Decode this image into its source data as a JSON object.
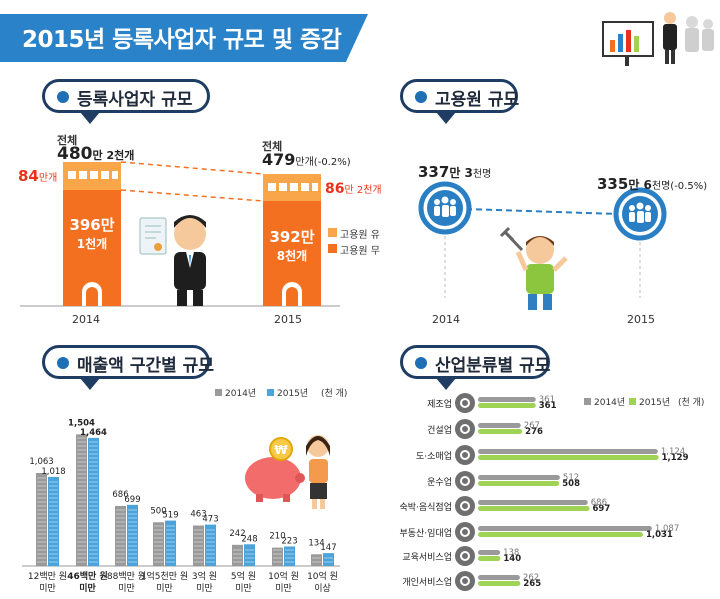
{
  "header": {
    "title": "2015년 등록사업자 규모 및 증감"
  },
  "sections": {
    "registered": "등록사업자 규모",
    "employment": "고용원 규모",
    "revenue": "매출액 구간별 규모",
    "industry": "산업분류별 규모"
  },
  "registered": {
    "year_2014": "2014",
    "year_2015": "2015",
    "total_label": "전체",
    "total_2014_big": "480",
    "total_2014_small": "만 2천개",
    "total_2015_big": "479",
    "total_2015_small": "만개(-0.2%)",
    "with_emp_2014_big": "84",
    "with_emp_2014_small": "만개",
    "with_emp_2015_big": "86",
    "with_emp_2015_small": "만 2천개",
    "no_emp_2014_line1": "396만",
    "no_emp_2014_line2": "1천개",
    "no_emp_2015_line1": "392만",
    "no_emp_2015_line2": "8천개",
    "legend_with": "고용원 유",
    "legend_without": "고용원 무"
  },
  "employment": {
    "year_2014": "2014",
    "year_2015": "2015",
    "val_2014_big": "337",
    "val_2014_mid": "만 3",
    "val_2014_small": "천명",
    "val_2015_big": "335",
    "val_2015_mid": "만 6",
    "val_2015_small": "천명(-0.5%)"
  },
  "colors": {
    "banner": "#2a83c9",
    "orange_dark": "#f37021",
    "orange_light": "#f9a64a",
    "series_2014": "#9a9a9a",
    "series_2015_revenue": "#4ba3dc",
    "series_2015_industry": "#9fd356",
    "employment_circle": "#2a7fc4",
    "accent_red": "#e9321c"
  },
  "chart_data": [
    {
      "type": "bar",
      "title": "매출액 구간별 규모",
      "unit": "(천 개)",
      "categories": [
        "12백만 원\n미만",
        "46백만 원\n미만",
        "88백만 원\n미만",
        "1억5천만 원\n미만",
        "3억 원\n미만",
        "5억 원\n미만",
        "10억 원\n미만",
        "10억 원\n이상"
      ],
      "category_lines": [
        [
          "12백만 원",
          "미만"
        ],
        [
          "46백만 원",
          "미만"
        ],
        [
          "88백만 원",
          "미만"
        ],
        [
          "1억5천만 원",
          "미만"
        ],
        [
          "3억 원",
          "미만"
        ],
        [
          "5억 원",
          "미만"
        ],
        [
          "10억 원",
          "미만"
        ],
        [
          "10억 원",
          "이상"
        ]
      ],
      "series": [
        {
          "name": "2014년",
          "values": [
            1063,
            1504,
            686,
            500,
            463,
            242,
            210,
            134
          ]
        },
        {
          "name": "2015년",
          "values": [
            1018,
            1464,
            699,
            519,
            473,
            248,
            223,
            147
          ]
        }
      ],
      "ylim": [
        0,
        1600
      ]
    },
    {
      "type": "bar",
      "orientation": "horizontal",
      "title": "산업분류별 규모",
      "unit": "(천 개)",
      "categories": [
        "제조업",
        "건설업",
        "도·소매업",
        "운수업",
        "숙박·음식점업",
        "부동산·임대업",
        "교육서비스업",
        "개인서비스업"
      ],
      "series": [
        {
          "name": "2014년",
          "values": [
            361,
            267,
            1124,
            512,
            686,
            1087,
            138,
            262
          ]
        },
        {
          "name": "2015년",
          "values": [
            361,
            276,
            1129,
            508,
            697,
            1031,
            140,
            265
          ]
        }
      ],
      "xlim": [
        0,
        1200
      ]
    },
    {
      "type": "bar",
      "title": "등록사업자 규모",
      "categories": [
        "2014",
        "2015"
      ],
      "series": [
        {
          "name": "고용원 유",
          "values": [
            84,
            86.2
          ]
        },
        {
          "name": "고용원 무",
          "values": [
            396.1,
            392.8
          ]
        }
      ],
      "totals": [
        480.2,
        479
      ]
    },
    {
      "type": "line",
      "title": "고용원 규모",
      "x": [
        "2014",
        "2015"
      ],
      "values": [
        337.3,
        335.6
      ]
    }
  ]
}
